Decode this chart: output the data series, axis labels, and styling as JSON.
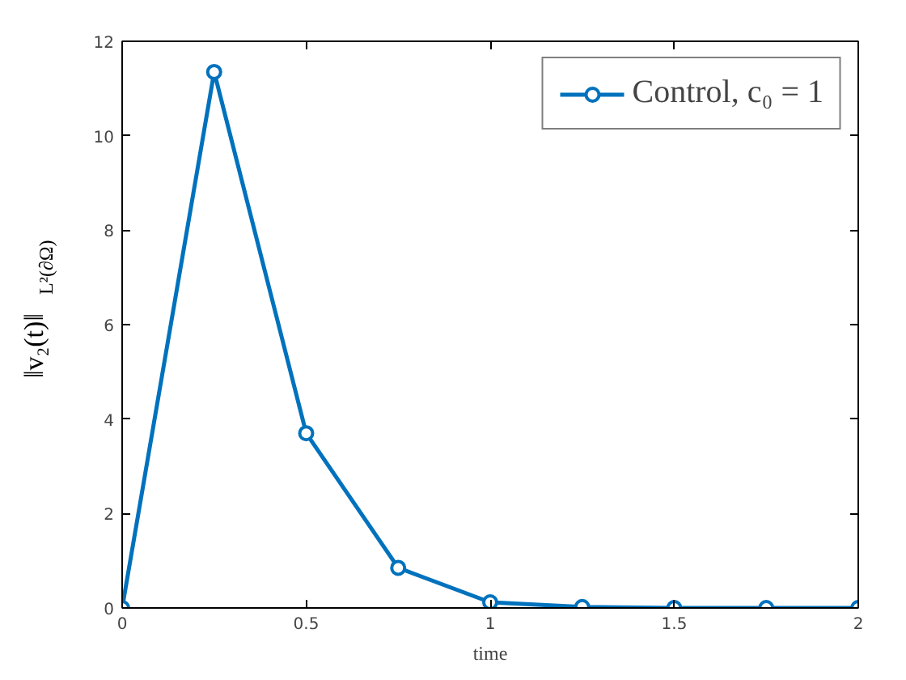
{
  "chart_data": {
    "type": "line",
    "xlabel": "time",
    "ylabel": "‖v₂(t)‖$_{L²(∂Ω)}$",
    "x": [
      0,
      0.25,
      0.5,
      0.75,
      1,
      1.25,
      1.5,
      1.75,
      2
    ],
    "series": [
      {
        "name": "Control, c₀ = 1",
        "color": "#0072bd",
        "values": [
          0,
          11.35,
          3.7,
          0.85,
          0.12,
          0.02,
          0,
          0,
          0
        ]
      }
    ],
    "xlim": [
      0,
      2
    ],
    "ylim": [
      0,
      12
    ],
    "xticks": [
      0,
      0.5,
      1,
      1.5,
      2
    ],
    "yticks": [
      0,
      2,
      4,
      6,
      8,
      10,
      12
    ],
    "grid": false,
    "legend": "top right",
    "marker": "circle",
    "line_style": "solid"
  }
}
